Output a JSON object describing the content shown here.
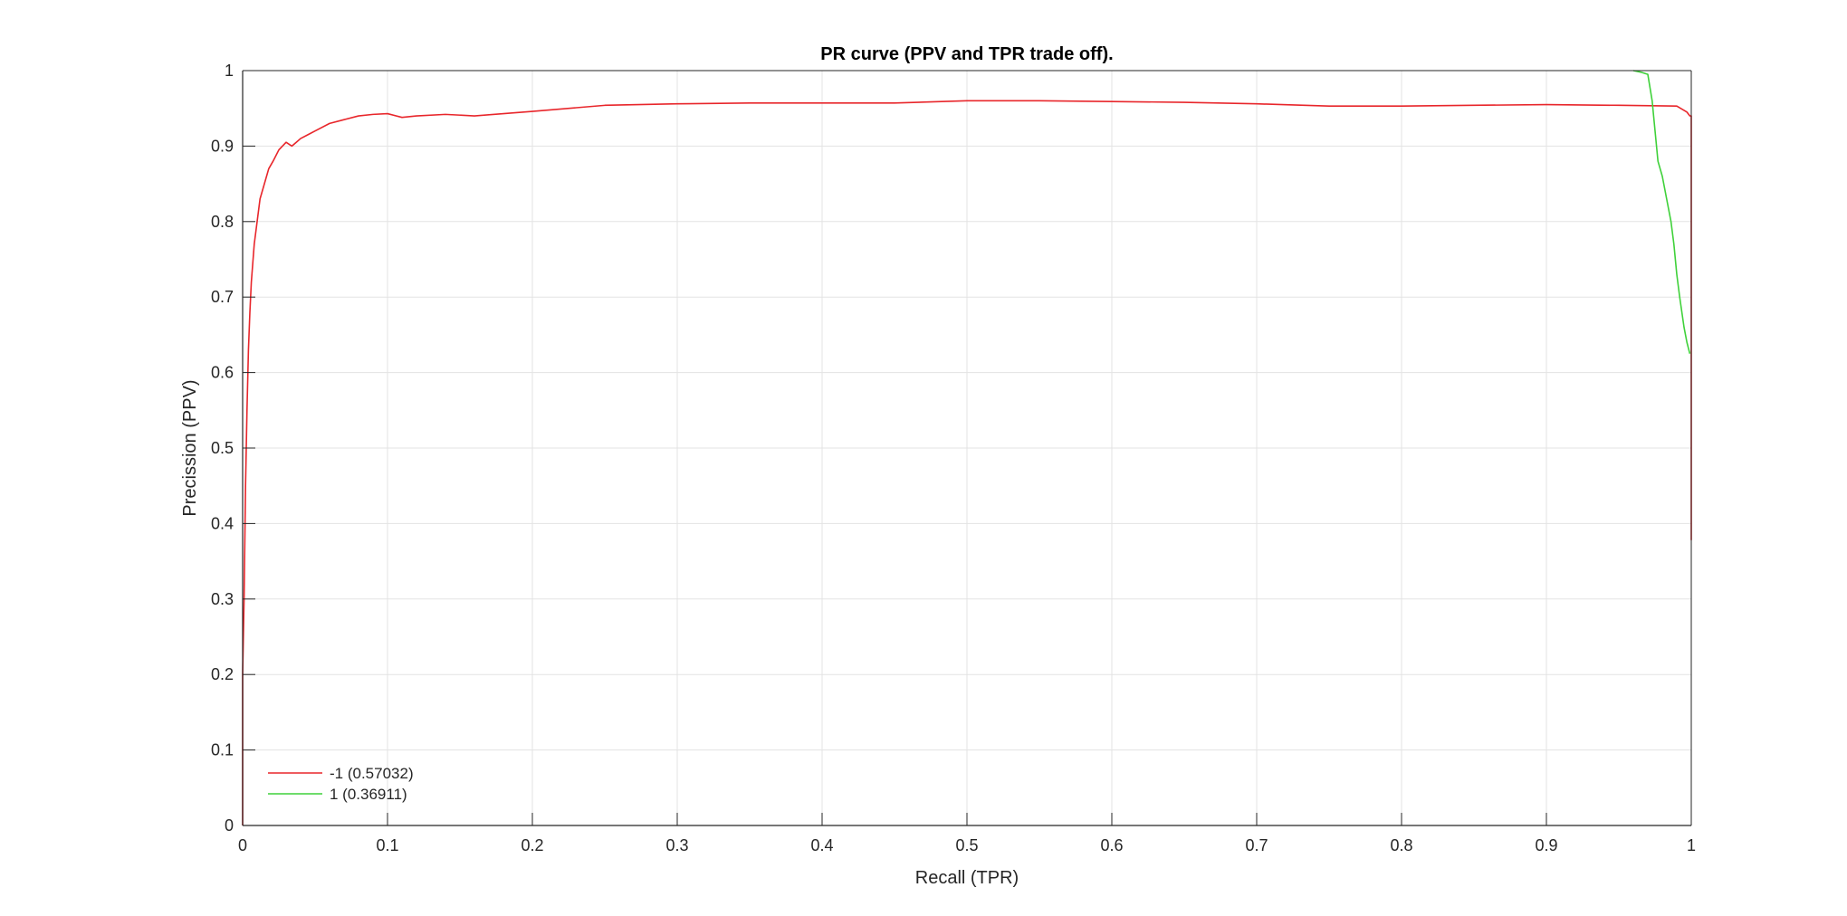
{
  "chart_data": {
    "type": "line",
    "title": "PR curve (PPV and TPR trade off).",
    "xlabel": "Recall (TPR)",
    "ylabel": "Precission (PPV)",
    "xlim": [
      0,
      1
    ],
    "ylim": [
      0,
      1
    ],
    "xticks": [
      "0",
      "0.1",
      "0.2",
      "0.3",
      "0.4",
      "0.5",
      "0.6",
      "0.7",
      "0.8",
      "0.9",
      "1"
    ],
    "yticks": [
      "0",
      "0.1",
      "0.2",
      "0.3",
      "0.4",
      "0.5",
      "0.6",
      "0.7",
      "0.8",
      "0.9",
      "1"
    ],
    "grid": true,
    "legend_position": "bottom-left",
    "series": [
      {
        "name": "-1 (0.57032)",
        "color": "#e8262b",
        "x": [
          0,
          0,
          0.001,
          0.002,
          0.003,
          0.004,
          0.005,
          0.006,
          0.008,
          0.01,
          0.012,
          0.015,
          0.018,
          0.021,
          0.025,
          0.03,
          0.034,
          0.037,
          0.04,
          0.045,
          0.05,
          0.06,
          0.07,
          0.08,
          0.09,
          0.1,
          0.11,
          0.12,
          0.14,
          0.16,
          0.18,
          0.2,
          0.25,
          0.3,
          0.35,
          0.4,
          0.45,
          0.5,
          0.55,
          0.6,
          0.65,
          0.7,
          0.75,
          0.8,
          0.85,
          0.9,
          0.95,
          0.99,
          0.997,
          0.999,
          1,
          1
        ],
        "y": [
          0,
          0.2,
          0.3,
          0.45,
          0.55,
          0.63,
          0.68,
          0.72,
          0.77,
          0.8,
          0.83,
          0.85,
          0.87,
          0.88,
          0.895,
          0.905,
          0.9,
          0.905,
          0.91,
          0.915,
          0.92,
          0.93,
          0.935,
          0.94,
          0.942,
          0.943,
          0.938,
          0.94,
          0.942,
          0.94,
          0.943,
          0.946,
          0.954,
          0.956,
          0.957,
          0.957,
          0.957,
          0.96,
          0.96,
          0.959,
          0.958,
          0.956,
          0.953,
          0.953,
          0.954,
          0.955,
          0.954,
          0.953,
          0.945,
          0.94,
          0.94,
          0.378
        ]
      },
      {
        "name": "1 (0.36911)",
        "color": "#3fd13a",
        "x": [
          0.96,
          0.965,
          0.97,
          0.973,
          0.975,
          0.977,
          0.98,
          0.983,
          0.986,
          0.988,
          0.99,
          0.992,
          0.995,
          0.997,
          0.999
        ],
        "y": [
          1,
          0.998,
          0.995,
          0.96,
          0.92,
          0.88,
          0.86,
          0.83,
          0.8,
          0.77,
          0.73,
          0.7,
          0.66,
          0.64,
          0.625
        ]
      }
    ]
  }
}
